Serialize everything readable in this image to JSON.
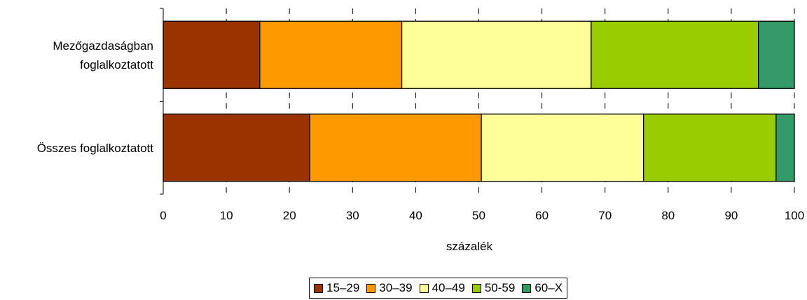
{
  "chart_data": {
    "type": "bar",
    "orientation": "horizontal",
    "stacked": true,
    "categories": [
      "Mezőgazdaságban foglalkoztatott",
      "Összes foglalkoztatott"
    ],
    "category_label_lines": [
      [
        "Mezőgazdaságban",
        "foglalkoztatott"
      ],
      [
        "Összes foglalkoztatott"
      ]
    ],
    "series": [
      {
        "name": "15–29",
        "color": "#993300",
        "values": [
          15.3,
          23.2
        ]
      },
      {
        "name": "30–39",
        "color": "#FF9900",
        "values": [
          22.5,
          27.2
        ]
      },
      {
        "name": "40–49",
        "color": "#FFFF99",
        "values": [
          30.0,
          25.7
        ]
      },
      {
        "name": "50-59",
        "color": "#99CC00",
        "values": [
          26.5,
          21.0
        ]
      },
      {
        "name": "60–X",
        "color": "#339966",
        "values": [
          5.7,
          2.9
        ]
      }
    ],
    "xlabel": "százalék",
    "xlim": [
      0,
      100
    ],
    "xticks": [
      "0",
      "10",
      "20",
      "30",
      "40",
      "50",
      "60",
      "70",
      "80",
      "90",
      "100"
    ],
    "grid": "vertical dashed",
    "legend_position": "bottom"
  }
}
